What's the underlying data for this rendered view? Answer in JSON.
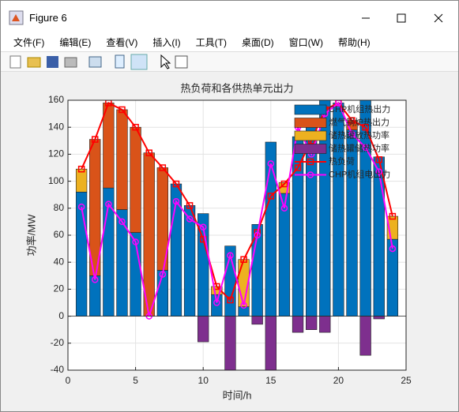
{
  "window": {
    "title": "Figure 6",
    "menu": [
      "文件(F)",
      "编辑(E)",
      "查看(V)",
      "插入(I)",
      "工具(T)",
      "桌面(D)",
      "窗口(W)",
      "帮助(H)"
    ]
  },
  "chart_data": {
    "type": "bar",
    "title": "热负荷和各供热单元出力",
    "xlabel": "时间/h",
    "ylabel": "功率/MW",
    "x": [
      1,
      2,
      3,
      4,
      5,
      6,
      7,
      8,
      9,
      10,
      11,
      12,
      13,
      14,
      15,
      16,
      17,
      18,
      19,
      20,
      21,
      22,
      23,
      24
    ],
    "xlim": [
      0,
      25
    ],
    "xticks": [
      0,
      5,
      10,
      15,
      20,
      25
    ],
    "ylim": [
      -40,
      160
    ],
    "yticks": [
      -40,
      -20,
      0,
      20,
      40,
      60,
      80,
      100,
      120,
      140,
      160
    ],
    "grid": true,
    "legend": "northeast",
    "series": [
      {
        "name": "CHP机组热出力",
        "type": "bar",
        "color": "#0072BD",
        "values": [
          92,
          30,
          95,
          79,
          62,
          0,
          34,
          98,
          82,
          76,
          16,
          52,
          7,
          68,
          129,
          91,
          133,
          140,
          165,
          158,
          138,
          170,
          118,
          57
        ]
      },
      {
        "name": "燃气锅炉热出力",
        "type": "bar",
        "color": "#D95319",
        "values": [
          0,
          101,
          63,
          74,
          78,
          121,
          76,
          0,
          0,
          0,
          0,
          0,
          0,
          0,
          0,
          0,
          0,
          0,
          0,
          0,
          7,
          0,
          0,
          0
        ]
      },
      {
        "name": "储热罐放热功率",
        "type": "bar",
        "color": "#EDB120",
        "values": [
          17,
          0,
          0,
          0,
          0,
          0,
          0,
          0,
          0,
          0,
          6,
          0,
          35,
          0,
          0,
          8,
          0,
          0,
          0,
          0,
          0,
          0,
          0,
          17
        ]
      },
      {
        "name": "储热罐储热功率",
        "type": "bar",
        "color": "#7E2F8E",
        "values": [
          0,
          0,
          0,
          0,
          0,
          0,
          0,
          0,
          0,
          -19,
          0,
          -40,
          0,
          -6,
          -40,
          0,
          -12,
          -10,
          -12,
          0,
          0,
          -29,
          -2,
          0
        ]
      },
      {
        "name": "热负荷",
        "type": "line",
        "marker": "square",
        "color": "#FF0000",
        "values": [
          109,
          131,
          158,
          153,
          140,
          121,
          110,
          98,
          82,
          57,
          22,
          12,
          42,
          62,
          89,
          98,
          110,
          130,
          153,
          158,
          145,
          140,
          116,
          74
        ]
      },
      {
        "name": "CHP机组电出力",
        "type": "line",
        "marker": "circle",
        "color": "#FF00FF",
        "values": [
          81,
          27,
          83,
          70,
          55,
          0,
          31,
          85,
          72,
          66,
          10,
          45,
          8,
          60,
          113,
          80,
          140,
          120,
          150,
          158,
          135,
          125,
          107,
          50
        ]
      }
    ]
  }
}
